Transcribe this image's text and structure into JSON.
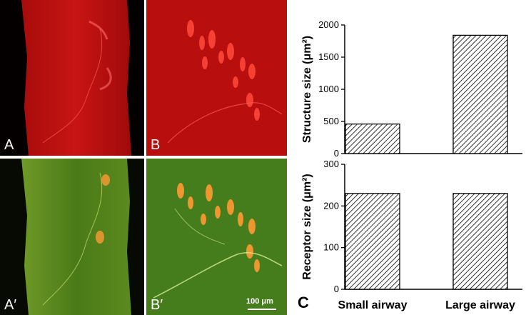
{
  "panels": [
    {
      "label": "A"
    },
    {
      "label": "B"
    },
    {
      "label": "A′"
    },
    {
      "label": "B′"
    }
  ],
  "scale_bar": {
    "label": "100 μm"
  },
  "figure_label": "C",
  "colors": {
    "red": "#c41010",
    "green": "#4f8a1c",
    "orange": "#ff9a33"
  },
  "chart_data": [
    {
      "type": "bar",
      "categories": [
        "Small airway",
        "Large airway"
      ],
      "values": [
        460,
        1840
      ],
      "ylabel": "Structure size (μm²)",
      "xlabel": "",
      "ylim": [
        0,
        2000
      ],
      "yticks": [
        0,
        500,
        1000,
        1500,
        2000
      ],
      "show_category_labels": false,
      "fill": "diagonal-hatch"
    },
    {
      "type": "bar",
      "categories": [
        "Small airway",
        "Large airway"
      ],
      "values": [
        230,
        230
      ],
      "ylabel": "Receptor size (μm²)",
      "xlabel": "",
      "ylim": [
        0,
        300
      ],
      "yticks": [
        0,
        100,
        200,
        300
      ],
      "show_category_labels": true,
      "fill": "diagonal-hatch"
    }
  ]
}
